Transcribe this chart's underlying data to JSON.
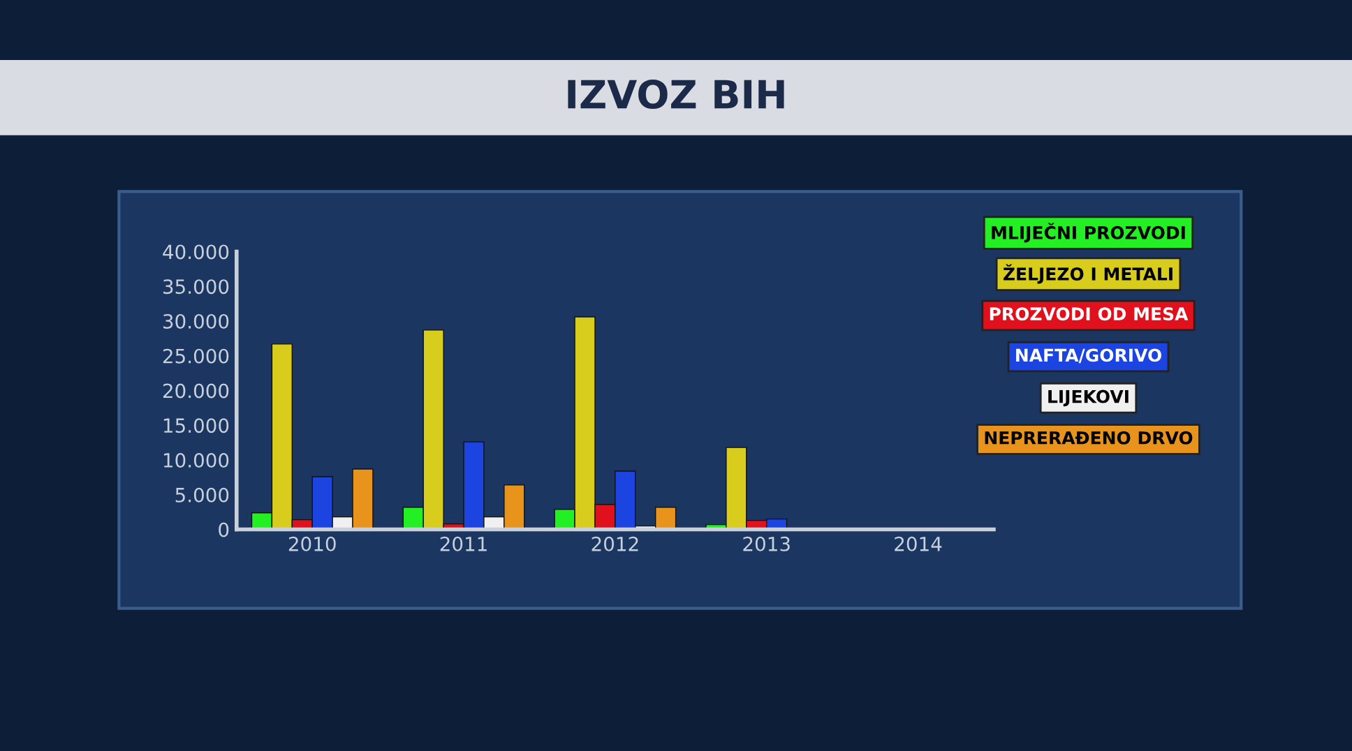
{
  "chart_data": {
    "type": "bar",
    "title": "IZVOZ BIH",
    "categories": [
      "2010",
      "2011",
      "2012",
      "2013",
      "2014"
    ],
    "series": [
      {
        "name": "MLIJEČNI PROZVODI",
        "color": "#22f022",
        "values": [
          2400,
          3200,
          2900,
          700,
          null
        ]
      },
      {
        "name": "ŽELJEZO I METALI",
        "color": "#d8cc1c",
        "values": [
          26700,
          28700,
          30600,
          11800,
          null
        ]
      },
      {
        "name": "PROZVODI OD MESA",
        "color": "#e0101c",
        "values": [
          1400,
          800,
          3600,
          1300,
          null
        ]
      },
      {
        "name": "NAFTA/GORIVO",
        "color": "#1c44e0",
        "values": [
          7600,
          12600,
          8400,
          1500,
          null
        ]
      },
      {
        "name": "LIJEKOVI",
        "color": "#f0f0f0",
        "values": [
          1800,
          1800,
          500,
          null,
          null
        ]
      },
      {
        "name": "NEPRERAĐENO DRVO",
        "color": "#e8941c",
        "values": [
          8700,
          6400,
          3200,
          null,
          null
        ]
      }
    ],
    "ylim": [
      0,
      40000
    ],
    "yticks": [
      0,
      {
        "value": 5000,
        "label": "5.000"
      },
      {
        "value": 10000,
        "label": "10.000"
      },
      {
        "value": 15000,
        "label": "15.000"
      },
      {
        "value": 20000,
        "label": "20.000"
      },
      {
        "value": 25000,
        "label": "25.000"
      },
      {
        "value": 30000,
        "label": "30.000"
      },
      {
        "value": 35000,
        "label": "35.000"
      },
      {
        "value": 40000,
        "label": "40.000"
      }
    ],
    "grid": false,
    "legend": "right"
  }
}
